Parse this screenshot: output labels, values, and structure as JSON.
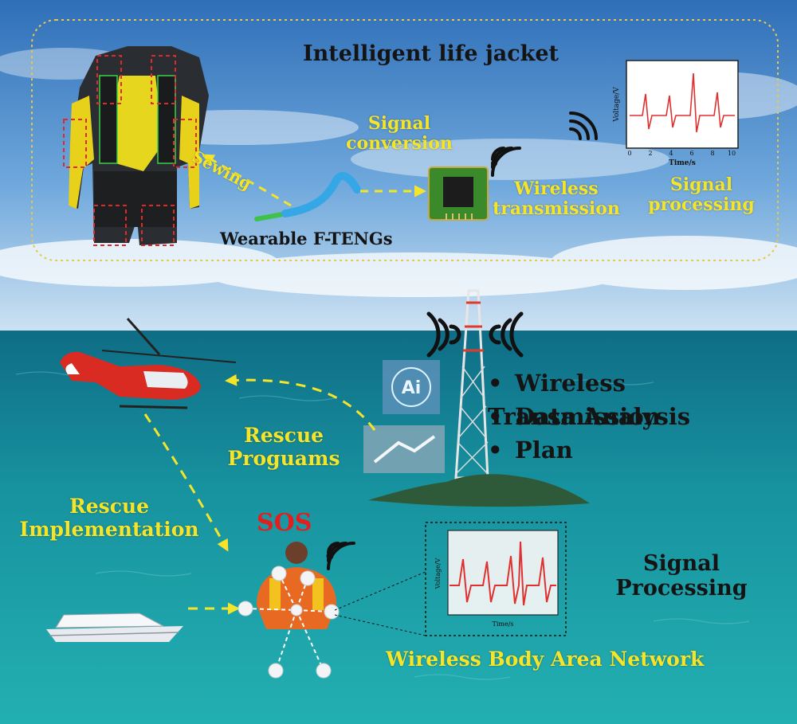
{
  "top_panel": {
    "title": "Intelligent life jacket",
    "sewing": "Sewing",
    "signal_conversion": [
      "Signal",
      "conversion"
    ],
    "wireless_transmission": [
      "Wireless",
      "transmission"
    ],
    "signal_processing": [
      "Signal",
      "processing"
    ],
    "fteng_label": "Wearable F-TENGs",
    "mini_chart": {
      "ylabel": "Voltage/V",
      "xlabel": "Time/s",
      "xticks": [
        "0",
        "2",
        "4",
        "6",
        "8",
        "10"
      ]
    }
  },
  "tower_list": [
    "Wireless Transmission",
    "Data Analysis",
    "Plan"
  ],
  "rescue_programs": [
    "Rescue",
    "Proguams"
  ],
  "rescue_implementation": [
    "Rescue",
    "Implementation"
  ],
  "sos": "SOS",
  "ai_badge": "Ai",
  "signal_processing_bottom": [
    "Signal",
    "Processing"
  ],
  "wban": "Wireless Body Area Network",
  "waveform_chart": {
    "ylabel": "Voltage/V",
    "xlabel": "Time/s"
  },
  "colors": {
    "sky": "#3f86c8",
    "sea": "#1fa3a6",
    "label_yellow": "#f4e52a",
    "sos_red": "#e02020",
    "signal_red": "#e03030",
    "dashed_frame": "#e8c84a"
  }
}
